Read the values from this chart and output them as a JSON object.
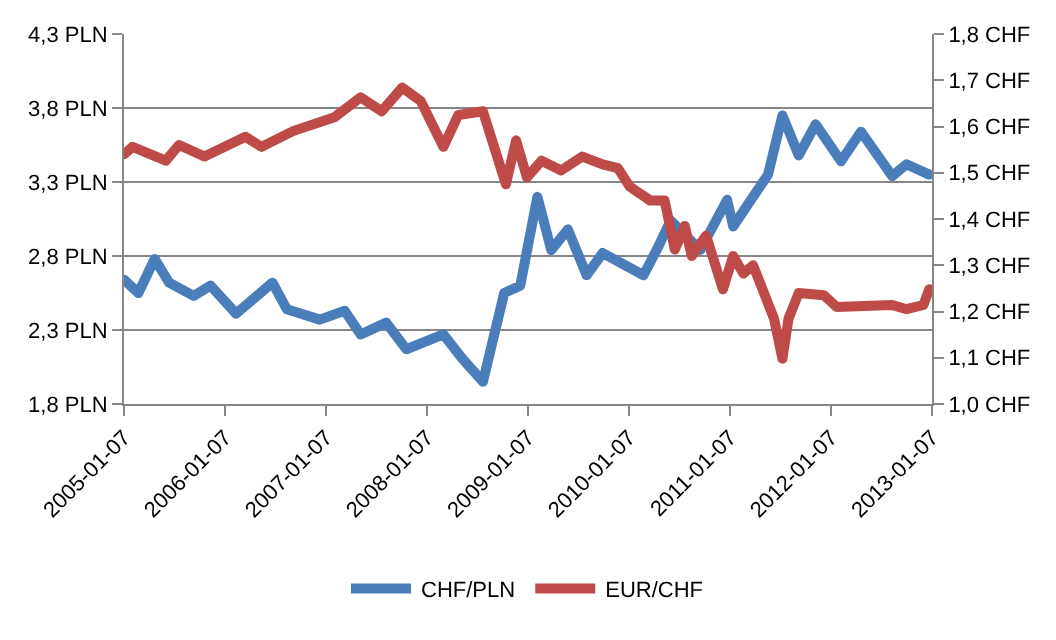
{
  "chart_data": {
    "type": "line",
    "xlim": [
      "2005-01-07",
      "2013-01-07"
    ],
    "xticks": [
      {
        "value": "2005-01-07",
        "label": "2005-01-07"
      },
      {
        "value": "2006-01-07",
        "label": "2006-01-07"
      },
      {
        "value": "2007-01-07",
        "label": "2007-01-07"
      },
      {
        "value": "2008-01-07",
        "label": "2008-01-07"
      },
      {
        "value": "2009-01-07",
        "label": "2009-01-07"
      },
      {
        "value": "2010-01-07",
        "label": "2010-01-07"
      },
      {
        "value": "2011-01-07",
        "label": "2011-01-07"
      },
      {
        "value": "2012-01-07",
        "label": "2012-01-07"
      },
      {
        "value": "2013-01-07",
        "label": "2013-01-07"
      }
    ],
    "ylim": [
      1.8,
      4.3
    ],
    "yticks": [
      {
        "value": 1.8,
        "label": "1,8 PLN"
      },
      {
        "value": 2.3,
        "label": "2,3 PLN"
      },
      {
        "value": 2.8,
        "label": "2,8 PLN"
      },
      {
        "value": 3.3,
        "label": "3,3 PLN"
      },
      {
        "value": 3.8,
        "label": "3,8 PLN"
      },
      {
        "value": 4.3,
        "label": "4,3 PLN"
      }
    ],
    "y2lim": [
      1.0,
      1.8
    ],
    "y2ticks": [
      {
        "value": 1.0,
        "label": "1,0 CHF"
      },
      {
        "value": 1.1,
        "label": "1,1 CHF"
      },
      {
        "value": 1.2,
        "label": "1,2 CHF"
      },
      {
        "value": 1.3,
        "label": "1,3 CHF"
      },
      {
        "value": 1.4,
        "label": "1,4 CHF"
      },
      {
        "value": 1.5,
        "label": "1,5 CHF"
      },
      {
        "value": 1.6,
        "label": "1,6 CHF"
      },
      {
        "value": 1.7,
        "label": "1,7 CHF"
      },
      {
        "value": 1.8,
        "label": "1,8 CHF"
      }
    ],
    "grid": "y",
    "legend": "bottom",
    "marker": "none",
    "line_style": "solid",
    "series": [
      {
        "name": "CHF/PLN",
        "color": "#4a7ebb",
        "x": [
          "2005-01-07",
          "2005-02-28",
          "2005-04-28",
          "2005-06-19",
          "2005-09-16",
          "2005-11-16",
          "2006-02-16",
          "2006-06-28",
          "2006-08-19",
          "2006-12-16",
          "2007-03-16",
          "2007-05-13",
          "2007-08-13",
          "2007-10-25",
          "2008-03-07",
          "2008-05-13",
          "2008-07-28",
          "2008-10-13",
          "2008-12-10",
          "2009-02-10",
          "2009-04-01",
          "2009-05-31",
          "2009-08-07",
          "2009-10-04",
          "2010-03-01",
          "2010-04-25",
          "2010-06-07",
          "2010-09-22",
          "2010-12-28",
          "2011-01-19",
          "2011-05-25",
          "2011-07-16",
          "2011-09-13",
          "2011-11-13",
          "2012-02-13",
          "2012-04-25",
          "2012-08-16",
          "2012-10-07",
          "2012-12-28"
        ],
        "values": [
          2.64,
          2.55,
          2.78,
          2.62,
          2.53,
          2.6,
          2.41,
          2.62,
          2.44,
          2.37,
          2.43,
          2.27,
          2.35,
          2.17,
          2.27,
          2.11,
          1.95,
          2.55,
          2.6,
          3.2,
          2.84,
          2.98,
          2.67,
          2.82,
          2.67,
          2.87,
          3.04,
          2.84,
          3.18,
          3.0,
          3.35,
          3.75,
          3.48,
          3.69,
          3.44,
          3.64,
          3.34,
          3.42,
          3.35
        ]
      },
      {
        "name": "EUR/CHF",
        "color": "#be4b48",
        "axis": "y2",
        "x": [
          "2005-01-07",
          "2005-02-07",
          "2005-06-07",
          "2005-07-25",
          "2005-10-25",
          "2006-03-22",
          "2006-05-19",
          "2006-09-10",
          "2007-02-07",
          "2007-05-13",
          "2007-07-28",
          "2007-10-10",
          "2007-12-16",
          "2008-03-07",
          "2008-04-30",
          "2008-07-28",
          "2008-10-19",
          "2008-11-25",
          "2009-01-03",
          "2009-02-25",
          "2009-05-07",
          "2009-07-22",
          "2009-10-04",
          "2009-11-28",
          "2010-01-10",
          "2010-03-25",
          "2010-05-16",
          "2010-06-22",
          "2010-07-28",
          "2010-08-22",
          "2010-10-13",
          "2010-12-13",
          "2011-01-19",
          "2011-02-25",
          "2011-04-01",
          "2011-06-16",
          "2011-07-16",
          "2011-08-07",
          "2011-09-13",
          "2011-12-13",
          "2012-01-28",
          "2012-08-16",
          "2012-10-07",
          "2012-12-07",
          "2012-12-28"
        ],
        "values": [
          1.54,
          1.556,
          1.526,
          1.56,
          1.535,
          1.578,
          1.556,
          1.59,
          1.62,
          1.663,
          1.633,
          1.684,
          1.655,
          1.556,
          1.625,
          1.633,
          1.475,
          1.57,
          1.49,
          1.526,
          1.505,
          1.535,
          1.518,
          1.51,
          1.47,
          1.44,
          1.44,
          1.334,
          1.385,
          1.32,
          1.364,
          1.248,
          1.32,
          1.282,
          1.3,
          1.184,
          1.098,
          1.184,
          1.24,
          1.235,
          1.21,
          1.214,
          1.205,
          1.214,
          1.248
        ]
      }
    ]
  }
}
